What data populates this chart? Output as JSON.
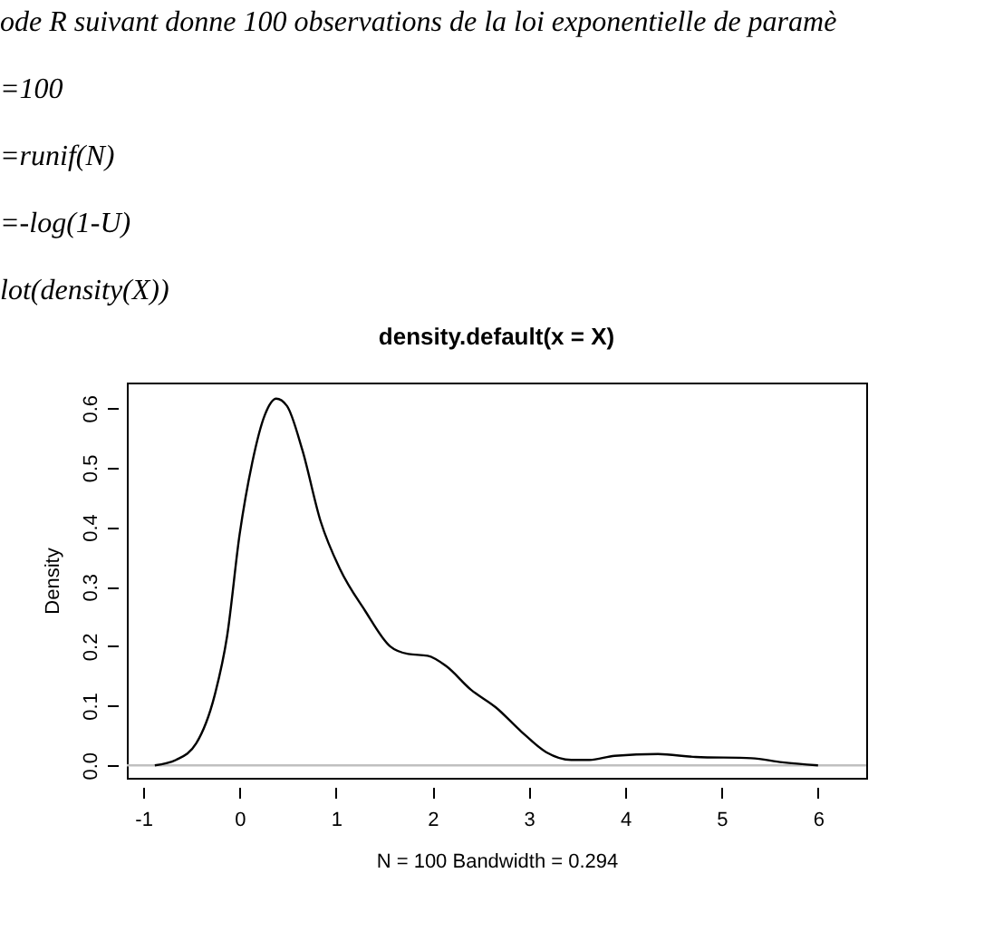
{
  "chart_data": {
    "type": "line",
    "title": "density.default(x = X)",
    "xlabel": "N = 100   Bandwidth = 0.294",
    "ylabel": "Density",
    "annotations": [
      "ode R suivant donne 100 observations de la loi exponentielle de paramè",
      "=100",
      "=runif(N)",
      "=-log(1-U)",
      "lot(density(X))"
    ],
    "xlim": [
      -1.17,
      6.5
    ],
    "ylim": [
      -0.021,
      0.643
    ],
    "xticks": [
      -1,
      0,
      1,
      2,
      3,
      4,
      5,
      6
    ],
    "yticks": [
      {
        "value": 0,
        "label": "0.0"
      },
      {
        "value": 0.1,
        "label": "0.1"
      },
      {
        "value": 0.2,
        "label": "0.2"
      },
      {
        "value": 0.3,
        "label": "0.3"
      },
      {
        "value": 0.4,
        "label": "0.4"
      },
      {
        "value": 0.5,
        "label": "0.5"
      },
      {
        "value": 0.6,
        "label": "0.6"
      }
    ],
    "grid": false,
    "marker": "none",
    "line_style": "solid",
    "ref_lines": [
      {
        "axis": "y",
        "value": 0,
        "color": "#c0c0c0"
      }
    ],
    "series": [
      {
        "color": "#000000",
        "x": [
          -0.88,
          -0.66,
          -0.45,
          -0.26,
          -0.13,
          0,
          0.13,
          0.26,
          0.38,
          0.49,
          0.65,
          0.84,
          1.04,
          1.3,
          1.56,
          1.75,
          1.95,
          2.14,
          2.4,
          2.66,
          2.92,
          3.18,
          3.44,
          3.63,
          3.89,
          4.34,
          4.73,
          5.31,
          5.63,
          6.0
        ],
        "values": [
          0,
          0.009,
          0.037,
          0.117,
          0.217,
          0.388,
          0.508,
          0.588,
          0.616,
          0.604,
          0.53,
          0.41,
          0.33,
          0.26,
          0.2,
          0.187,
          0.184,
          0.167,
          0.127,
          0.097,
          0.057,
          0.022,
          0.009,
          0.009,
          0.016,
          0.019,
          0.014,
          0.012,
          0.005,
          0
        ]
      }
    ]
  }
}
